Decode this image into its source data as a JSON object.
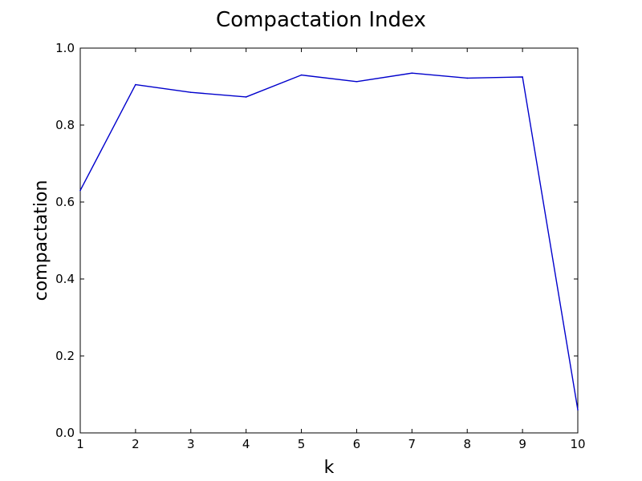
{
  "chart_data": {
    "type": "line",
    "title": "Compactation Index",
    "xlabel": "k",
    "ylabel": "compactation",
    "xlim": [
      1,
      10
    ],
    "ylim": [
      0.0,
      1.0
    ],
    "x_ticks": [
      "1",
      "2",
      "3",
      "4",
      "5",
      "6",
      "7",
      "8",
      "9",
      "10"
    ],
    "y_ticks": [
      "0.0",
      "0.2",
      "0.4",
      "0.6",
      "0.8",
      "1.0"
    ],
    "grid": false,
    "series": [
      {
        "color": "#0000cc",
        "x": [
          1,
          2,
          3,
          4,
          5,
          6,
          7,
          8,
          9,
          10
        ],
        "y": [
          0.63,
          0.905,
          0.885,
          0.873,
          0.93,
          0.913,
          0.935,
          0.922,
          0.925,
          0.06
        ]
      }
    ]
  }
}
